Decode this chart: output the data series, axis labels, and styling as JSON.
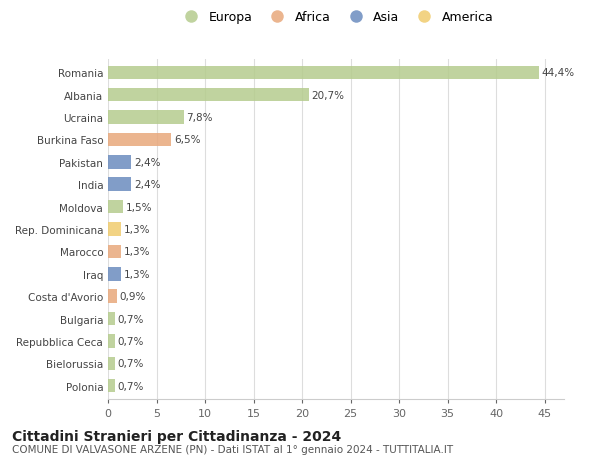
{
  "countries": [
    "Romania",
    "Albania",
    "Ucraina",
    "Burkina Faso",
    "Pakistan",
    "India",
    "Moldova",
    "Rep. Dominicana",
    "Marocco",
    "Iraq",
    "Costa d'Avorio",
    "Bulgaria",
    "Repubblica Ceca",
    "Bielorussia",
    "Polonia"
  ],
  "values": [
    44.4,
    20.7,
    7.8,
    6.5,
    2.4,
    2.4,
    1.5,
    1.3,
    1.3,
    1.3,
    0.9,
    0.7,
    0.7,
    0.7,
    0.7
  ],
  "labels": [
    "44,4%",
    "20,7%",
    "7,8%",
    "6,5%",
    "2,4%",
    "2,4%",
    "1,5%",
    "1,3%",
    "1,3%",
    "1,3%",
    "0,9%",
    "0,7%",
    "0,7%",
    "0,7%",
    "0,7%"
  ],
  "continents": [
    "Europa",
    "Europa",
    "Europa",
    "Africa",
    "Asia",
    "Asia",
    "Europa",
    "America",
    "Africa",
    "Asia",
    "Africa",
    "Europa",
    "Europa",
    "Europa",
    "Europa"
  ],
  "continent_colors": {
    "Europa": "#b5cc8e",
    "Africa": "#e8a87c",
    "Asia": "#6b8cbf",
    "America": "#f0cc6e"
  },
  "legend_order": [
    "Europa",
    "Africa",
    "Asia",
    "America"
  ],
  "xlim": [
    0,
    47
  ],
  "xticks": [
    0,
    5,
    10,
    15,
    20,
    25,
    30,
    35,
    40,
    45
  ],
  "title": "Cittadini Stranieri per Cittadinanza - 2024",
  "subtitle": "COMUNE DI VALVASONE ARZENE (PN) - Dati ISTAT al 1° gennaio 2024 - TUTTITALIA.IT",
  "bg_color": "#ffffff",
  "grid_color": "#dddddd",
  "bar_height": 0.6,
  "label_fontsize": 7.5,
  "ytick_fontsize": 7.5,
  "xtick_fontsize": 8,
  "title_fontsize": 10,
  "subtitle_fontsize": 7.5
}
